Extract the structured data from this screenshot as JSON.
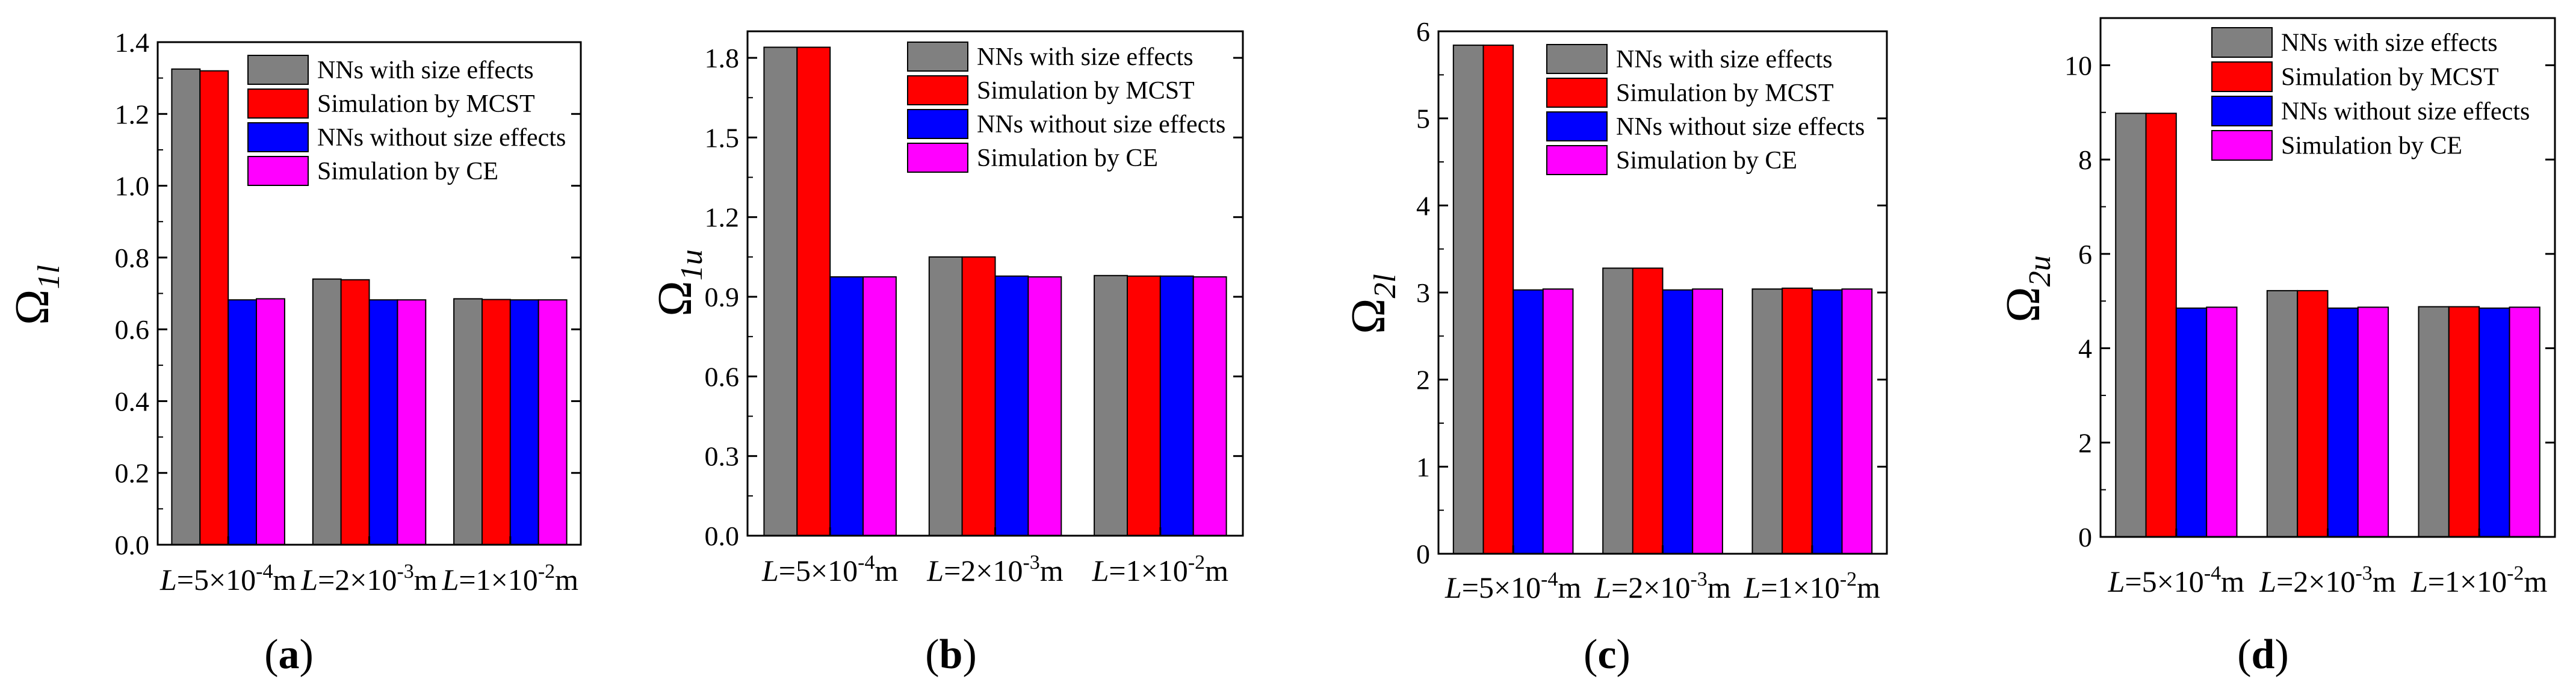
{
  "figure": {
    "panel_letters": [
      "a",
      "b",
      "c",
      "d"
    ]
  },
  "series_style": [
    {
      "name": "NNs with size effects",
      "color": "#808080"
    },
    {
      "name": "Simulation by MCST",
      "color": "#ff0000"
    },
    {
      "name": "NNs without size effects",
      "color": "#0000ff"
    },
    {
      "name": "Simulation by CE",
      "color": "#ff00ff"
    }
  ],
  "chart_data": [
    {
      "type": "bar",
      "panel": "a",
      "ylabel": "Ω",
      "ylabel_sub": "1l",
      "ylim": [
        0,
        1.4
      ],
      "yticks": [
        0.0,
        0.2,
        0.4,
        0.6,
        0.8,
        1.0,
        1.2,
        1.4
      ],
      "ytick_decimals": 1,
      "categories": [
        "L=5×10⁻⁴m",
        "L=2×10⁻³m",
        "L=1×10⁻²m"
      ],
      "category_parts": [
        {
          "var": "L",
          "base": "=5×10",
          "exp": "-4",
          "unit": "m"
        },
        {
          "var": "L",
          "base": "=2×10",
          "exp": "-3",
          "unit": "m"
        },
        {
          "var": "L",
          "base": "=1×10",
          "exp": "-2",
          "unit": "m"
        }
      ],
      "series": [
        {
          "name": "NNs with size effects",
          "values": [
            1.325,
            0.74,
            0.685
          ]
        },
        {
          "name": "Simulation by MCST",
          "values": [
            1.32,
            0.738,
            0.683
          ]
        },
        {
          "name": "NNs without size effects",
          "values": [
            0.682,
            0.682,
            0.682
          ]
        },
        {
          "name": "Simulation by CE",
          "values": [
            0.685,
            0.682,
            0.682
          ]
        }
      ]
    },
    {
      "type": "bar",
      "panel": "b",
      "ylabel": "Ω",
      "ylabel_sub": "1u",
      "ylim": [
        0,
        1.9
      ],
      "yticks": [
        0.0,
        0.3,
        0.6,
        0.9,
        1.2,
        1.5,
        1.8
      ],
      "ytick_decimals": 1,
      "categories": [
        "L=5×10⁻⁴m",
        "L=2×10⁻³m",
        "L=1×10⁻²m"
      ],
      "category_parts": [
        {
          "var": "L",
          "base": "=5×10",
          "exp": "-4",
          "unit": "m"
        },
        {
          "var": "L",
          "base": "=2×10",
          "exp": "-3",
          "unit": "m"
        },
        {
          "var": "L",
          "base": "=1×10",
          "exp": "-2",
          "unit": "m"
        }
      ],
      "series": [
        {
          "name": "NNs with size effects",
          "values": [
            1.84,
            1.05,
            0.98
          ]
        },
        {
          "name": "Simulation by MCST",
          "values": [
            1.84,
            1.05,
            0.978
          ]
        },
        {
          "name": "NNs without size effects",
          "values": [
            0.975,
            0.978,
            0.978
          ]
        },
        {
          "name": "Simulation by CE",
          "values": [
            0.975,
            0.975,
            0.975
          ]
        }
      ]
    },
    {
      "type": "bar",
      "panel": "c",
      "ylabel": "Ω",
      "ylabel_sub": "2l",
      "ylim": [
        0,
        6
      ],
      "yticks": [
        0,
        1,
        2,
        3,
        4,
        5,
        6
      ],
      "ytick_decimals": 0,
      "categories": [
        "L=5×10⁻⁴m",
        "L=2×10⁻³m",
        "L=1×10⁻²m"
      ],
      "category_parts": [
        {
          "var": "L",
          "base": "=5×10",
          "exp": "-4",
          "unit": "m"
        },
        {
          "var": "L",
          "base": "=2×10",
          "exp": "-3",
          "unit": "m"
        },
        {
          "var": "L",
          "base": "=1×10",
          "exp": "-2",
          "unit": "m"
        }
      ],
      "series": [
        {
          "name": "NNs with size effects",
          "values": [
            5.84,
            3.28,
            3.04
          ]
        },
        {
          "name": "Simulation by MCST",
          "values": [
            5.84,
            3.28,
            3.05
          ]
        },
        {
          "name": "NNs without size effects",
          "values": [
            3.03,
            3.03,
            3.03
          ]
        },
        {
          "name": "Simulation by CE",
          "values": [
            3.04,
            3.04,
            3.04
          ]
        }
      ]
    },
    {
      "type": "bar",
      "panel": "d",
      "ylabel": "Ω",
      "ylabel_sub": "2u",
      "ylim": [
        0,
        11
      ],
      "yticks": [
        0,
        2,
        4,
        6,
        8,
        10
      ],
      "ytick_decimals": 0,
      "categories": [
        "L=5×10⁻⁴m",
        "L=2×10⁻³m",
        "L=1×10⁻²m"
      ],
      "category_parts": [
        {
          "var": "L",
          "base": "=5×10",
          "exp": "-4",
          "unit": "m"
        },
        {
          "var": "L",
          "base": "=2×10",
          "exp": "-3",
          "unit": "m"
        },
        {
          "var": "L",
          "base": "=1×10",
          "exp": "-2",
          "unit": "m"
        }
      ],
      "series": [
        {
          "name": "NNs with size effects",
          "values": [
            8.98,
            5.22,
            4.88
          ]
        },
        {
          "name": "Simulation by MCST",
          "values": [
            8.98,
            5.22,
            4.88
          ]
        },
        {
          "name": "NNs without size effects",
          "values": [
            4.85,
            4.85,
            4.85
          ]
        },
        {
          "name": "Simulation by CE",
          "values": [
            4.87,
            4.87,
            4.87
          ]
        }
      ]
    }
  ]
}
